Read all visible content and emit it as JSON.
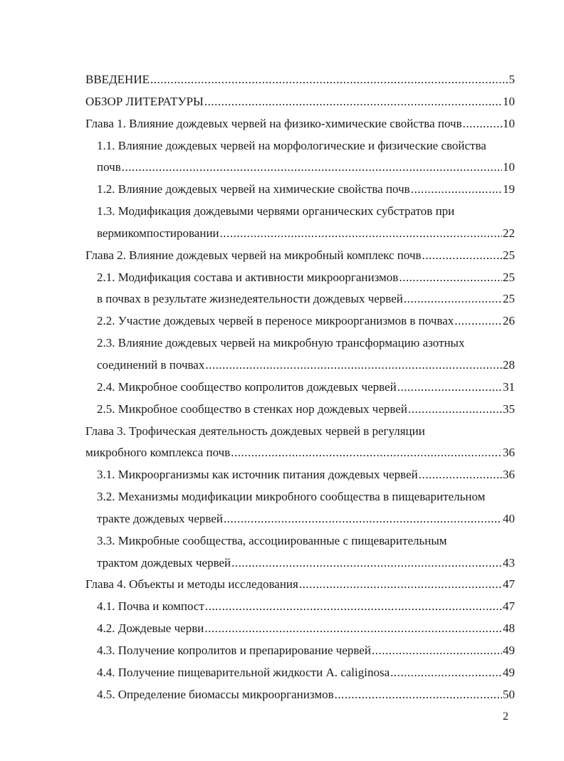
{
  "toc": [
    {
      "level": "top",
      "text": "ВВЕДЕНИЕ",
      "page": "5"
    },
    {
      "level": "top",
      "text": "ОБЗОР ЛИТЕРАТУРЫ",
      "page": "10"
    },
    {
      "level": "top",
      "text": "Глава 1. Влияние дождевых червей на физико-химические свойства почв",
      "page": "10"
    },
    {
      "level": "sub",
      "text": "1.1. Влияние дождевых червей на морфологические и физические свойства",
      "cont": "почв",
      "page": "10"
    },
    {
      "level": "sub",
      "text": "1.2. Влияние дождевых червей на химические свойства почв",
      "page": "19"
    },
    {
      "level": "sub",
      "text": "1.3. Модификация дождевыми червями органических субстратов при",
      "cont": "вермикомпостировании",
      "page": "22"
    },
    {
      "level": "top",
      "text": "Глава 2. Влияние дождевых червей на микробный комплекс почв",
      "page": "25"
    },
    {
      "level": "sub",
      "text": "2.1. Модификация состава и активности микроорганизмов",
      "page": "25"
    },
    {
      "level": "sub",
      "text": "в почвах в результате жизнедеятельности дождевых червей",
      "page": "25"
    },
    {
      "level": "sub",
      "text": "2.2. Участие дождевых червей в переносе микроорганизмов в почвах",
      "page": "26"
    },
    {
      "level": "sub",
      "text": "2.3. Влияние дождевых червей на микробную трансформацию азотных",
      "cont": "соединений в почвах",
      "page": "28"
    },
    {
      "level": "sub",
      "text": "2.4. Микробное сообщество копролитов дождевых червей",
      "page": "31"
    },
    {
      "level": "sub",
      "text": "2.5. Микробное сообщество в стенках нор дождевых червей",
      "page": "35"
    },
    {
      "level": "top",
      "text": "Глава 3. Трофическая деятельность дождевых червей в регуляции",
      "cont": "микробного комплекса почв",
      "page": "36"
    },
    {
      "level": "sub",
      "text": "3.1. Микроорганизмы как источник питания дождевых червей",
      "page": "36"
    },
    {
      "level": "sub",
      "text": "3.2. Механизмы модификации микробного сообщества в пищеварительном",
      "cont": "тракте дождевых червей",
      "page": "40"
    },
    {
      "level": "sub",
      "text": "3.3. Микробные сообщества, ассоциированные с пищеварительным",
      "cont": "трактом дождевых червей",
      "page": "43"
    },
    {
      "level": "top",
      "text": "Глава 4. Объекты и методы исследования",
      "page": "47"
    },
    {
      "level": "sub",
      "text": "4.1. Почва и компост",
      "page": "47"
    },
    {
      "level": "sub",
      "text": "4.2. Дождевые черви",
      "page": "48"
    },
    {
      "level": "sub",
      "text": "4.3. Получение копролитов и препарирование червей",
      "page": "49"
    },
    {
      "level": "sub",
      "text": "4.4. Получение пищеварительной жидкости  A. caliginosa",
      "page": "49"
    },
    {
      "level": "sub",
      "text": "4.5. Определение биомассы микроорганизмов",
      "page": "50"
    }
  ],
  "page_number": "2"
}
